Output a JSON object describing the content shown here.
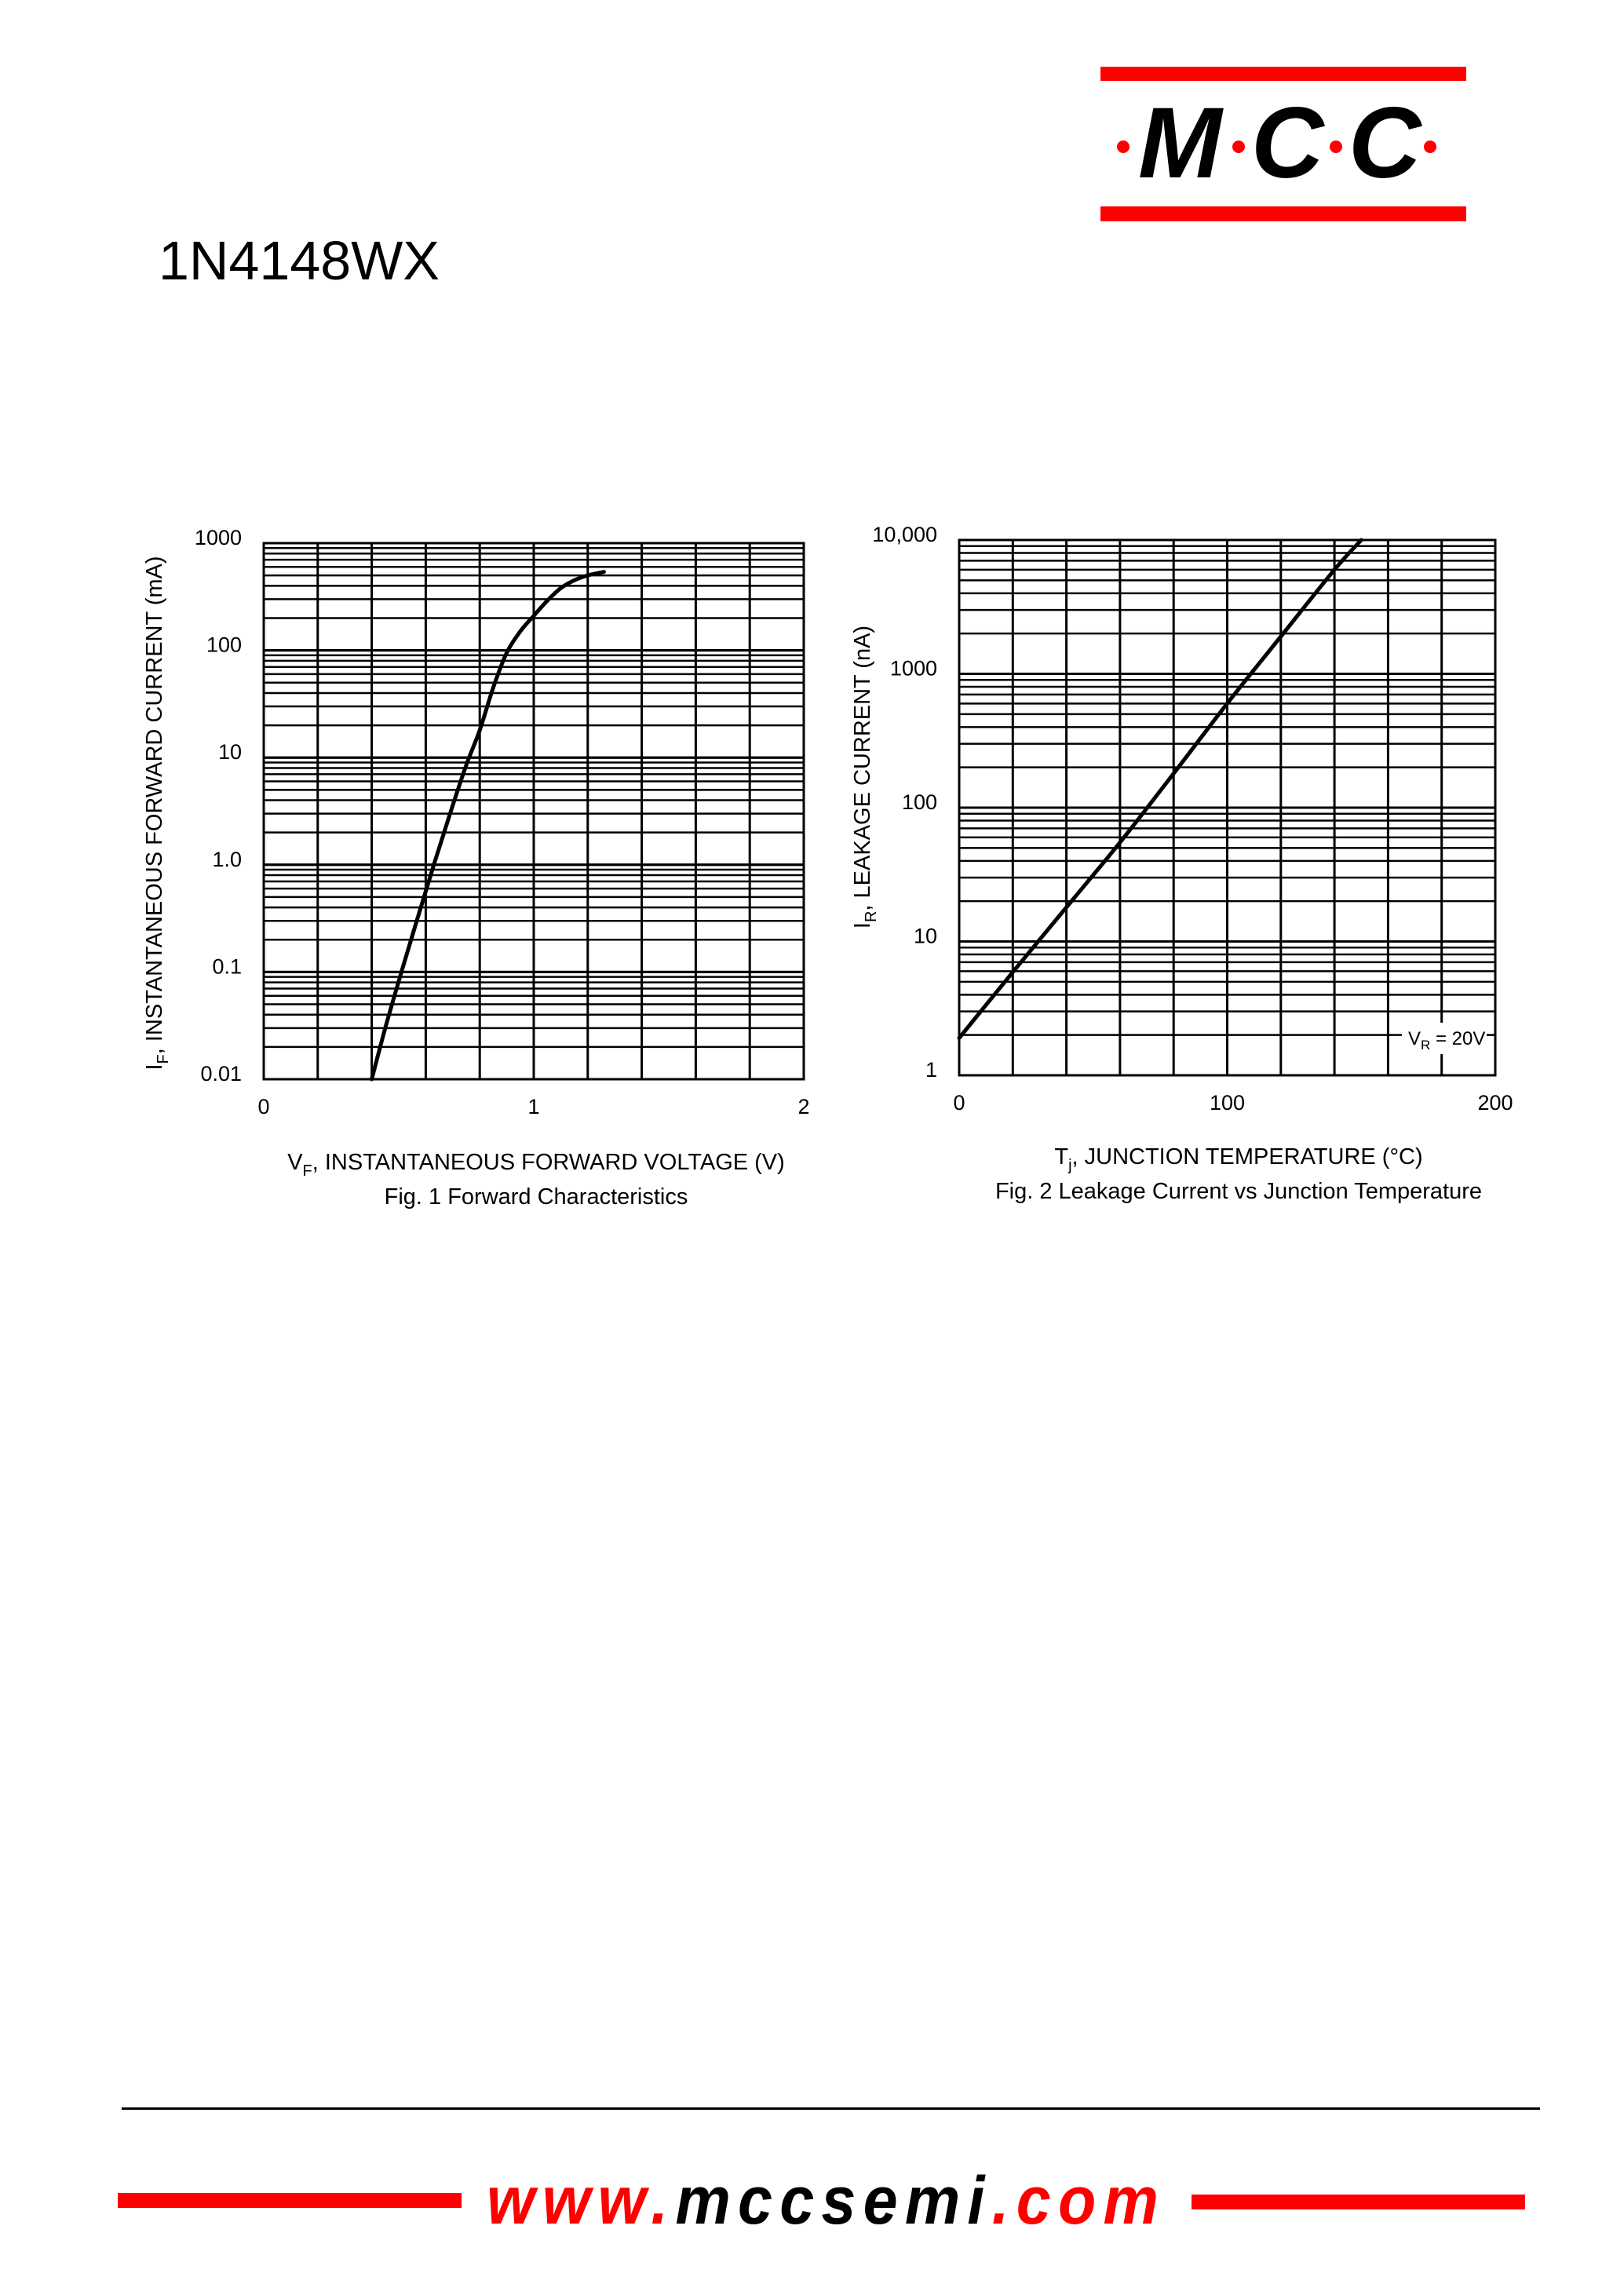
{
  "header": {
    "logo": {
      "letters": [
        "M",
        "C",
        "C"
      ],
      "dots_color": "#ff0000",
      "bar_color": "#ff0000"
    },
    "part_number": "1N4148WX"
  },
  "footer": {
    "url_parts": [
      {
        "text": "www.",
        "color": "#ff0000"
      },
      {
        "text": "mccsemi",
        "color": "#000000"
      },
      {
        "text": ".com",
        "color": "#ff0000"
      }
    ],
    "bar_color": "#ff0000"
  },
  "chart_data": [
    {
      "type": "line",
      "title": "Fig. 1  Forward Characteristics",
      "xlabel_main": "V",
      "xlabel_sub": "F",
      "xlabel_rest": ", INSTANTANEOUS FORWARD VOLTAGE (V)",
      "ylabel_main": "I",
      "ylabel_sub": "F",
      "ylabel_rest": ", INSTANTANEOUS FORWARD CURRENT (mA)",
      "xscale": "linear",
      "yscale": "log",
      "xlim": [
        0,
        2
      ],
      "ylim": [
        0.01,
        1000
      ],
      "xticks": [
        0,
        1,
        2
      ],
      "xtick_labels": [
        "0",
        "1",
        "2"
      ],
      "yticks": [
        0.01,
        0.1,
        1,
        10,
        100,
        1000
      ],
      "ytick_labels": [
        "0.01",
        "0.1",
        "1.0",
        "10",
        "100",
        "1000"
      ],
      "x_grid_step": 0.2,
      "grid": true,
      "series": [
        {
          "name": "I_F vs V_F",
          "x": [
            0.4,
            0.45,
            0.51,
            0.57,
            0.63,
            0.69,
            0.75,
            0.8,
            0.85,
            0.9,
            0.95,
            1.0,
            1.05,
            1.1,
            1.15,
            1.2,
            1.26
          ],
          "y": [
            0.01,
            0.03,
            0.1,
            0.32,
            1.0,
            3.0,
            8.5,
            18,
            45,
            95,
            150,
            210,
            290,
            380,
            450,
            500,
            540
          ]
        }
      ]
    },
    {
      "type": "line",
      "title": "Fig. 2  Leakage Current vs Junction Temperature",
      "xlabel_main": "T",
      "xlabel_sub": "j",
      "xlabel_rest": ", JUNCTION TEMPERATURE (°C)",
      "ylabel_main": "I",
      "ylabel_sub": "R",
      "ylabel_rest": ", LEAKAGE CURRENT (nA)",
      "xscale": "linear",
      "yscale": "log",
      "xlim": [
        0,
        200
      ],
      "ylim": [
        1,
        10000
      ],
      "xticks": [
        0,
        100,
        200
      ],
      "xtick_labels": [
        "0",
        "100",
        "200"
      ],
      "yticks": [
        1,
        10,
        100,
        1000,
        10000
      ],
      "ytick_labels": [
        "1",
        "10",
        "100",
        "1000",
        "10,000"
      ],
      "x_grid_step": 20,
      "grid": true,
      "annotation": {
        "main": "V",
        "sub": "R",
        "rest": " = 20V"
      },
      "series": [
        {
          "name": "I_R at V_R = 20V",
          "x": [
            0,
            20,
            40,
            60,
            80,
            100,
            120,
            140,
            150
          ],
          "y": [
            1.9,
            5.9,
            18,
            55,
            180,
            600,
            1900,
            6000,
            10000
          ]
        }
      ]
    }
  ]
}
